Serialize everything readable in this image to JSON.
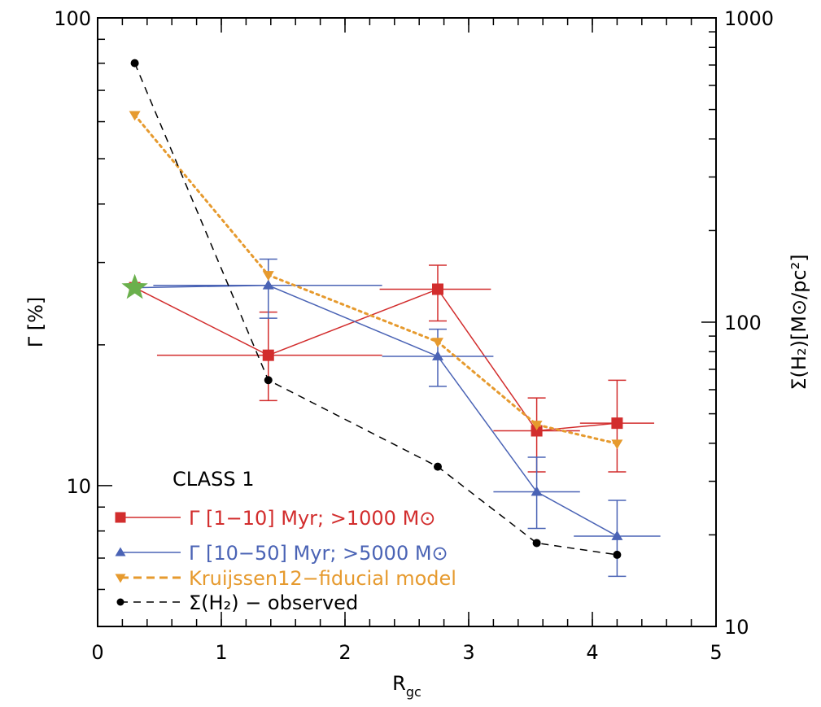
{
  "chart_data": {
    "type": "line",
    "xlabel": "R",
    "xlabel_sub": "gc",
    "ylabel": "Γ [%]",
    "y2label": "Σ(H₂)[M⊙/pc²]",
    "xlim": [
      0,
      5
    ],
    "ylim": [
      5,
      100
    ],
    "y2lim": [
      10,
      1000
    ],
    "yscale": "log",
    "y2scale": "log",
    "x_ticks": [
      "0",
      "1",
      "2",
      "3",
      "4",
      "5"
    ],
    "y_ticks": [
      "10",
      "100"
    ],
    "y2_ticks": [
      "10",
      "100",
      "1000"
    ],
    "legend_title": "CLASS 1",
    "legend_placement": "lower-left",
    "series": [
      {
        "name": "Γ [1−10] Myr; >1000 M⊙",
        "color": "#d22d2d",
        "marker": "square",
        "axis": "left",
        "points": [
          {
            "x": 0.3,
            "y": 26.5
          },
          {
            "x": 1.38,
            "y": 19.0,
            "xerr": [
              0.9,
              0.92
            ],
            "yerr": [
              15.2,
              23.5
            ]
          },
          {
            "x": 2.75,
            "y": 26.3,
            "xerr": [
              0.47,
              0.43
            ],
            "yerr": [
              22.5,
              29.6
            ]
          },
          {
            "x": 3.55,
            "y": 13.1,
            "xerr": [
              0.35,
              0.35
            ],
            "yerr": [
              10.7,
              15.4
            ]
          },
          {
            "x": 4.2,
            "y": 13.6,
            "xerr": [
              0.3,
              0.3
            ],
            "yerr": [
              10.7,
              16.8
            ]
          }
        ]
      },
      {
        "name": "Γ [10−50] Myr; >5000 M⊙",
        "color": "#4a63b5",
        "marker": "triangle",
        "axis": "left",
        "points": [
          {
            "x": 0.3,
            "y": 26.5
          },
          {
            "x": 1.38,
            "y": 26.8,
            "xerr": [
              0.93,
              0.92
            ],
            "yerr": [
              22.8,
              30.5
            ]
          },
          {
            "x": 2.75,
            "y": 18.9,
            "xerr": [
              0.45,
              0.45
            ],
            "yerr": [
              16.3,
              21.6
            ]
          },
          {
            "x": 3.55,
            "y": 9.7,
            "xerr": [
              0.35,
              0.35
            ],
            "yerr": [
              8.1,
              11.5
            ]
          },
          {
            "x": 4.2,
            "y": 7.8,
            "xerr": [
              0.35,
              0.35
            ],
            "yerr": [
              6.4,
              9.3
            ]
          }
        ]
      },
      {
        "name": "Kruijssen12−fiducial model",
        "color": "#e69a2e",
        "marker": "triangle-down",
        "axis": "left",
        "points": [
          {
            "x": 0.3,
            "y": 62.0
          },
          {
            "x": 1.38,
            "y": 28.2
          },
          {
            "x": 2.75,
            "y": 20.3
          },
          {
            "x": 3.55,
            "y": 13.5
          },
          {
            "x": 4.2,
            "y": 12.3
          }
        ]
      },
      {
        "name": "Σ(H₂) − observed",
        "color": "#000000",
        "marker": "circle",
        "axis": "right",
        "points": [
          {
            "x": 0.3,
            "y": 710
          },
          {
            "x": 1.38,
            "y": 64.5
          },
          {
            "x": 2.75,
            "y": 33.5
          },
          {
            "x": 3.55,
            "y": 18.8
          },
          {
            "x": 4.2,
            "y": 17.2
          }
        ]
      }
    ],
    "annotations": [
      {
        "type": "star",
        "x": 0.3,
        "y": 26.5,
        "color": "#6ab04c",
        "axis": "left"
      }
    ]
  }
}
